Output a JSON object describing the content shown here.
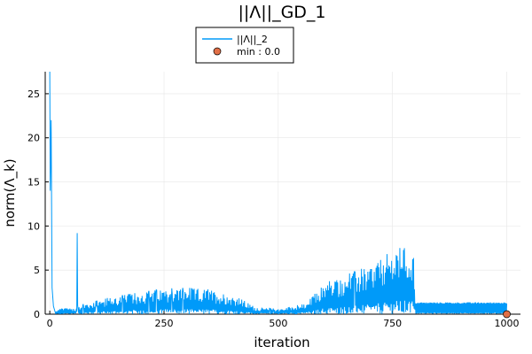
{
  "chart_data": {
    "type": "line",
    "title": "||Λ||_GD_1",
    "xlabel": "iteration",
    "ylabel": "norm(Λ_k)",
    "xlim": [
      -10,
      1030
    ],
    "ylim": [
      0,
      27.5
    ],
    "xticks": [
      0,
      250,
      500,
      750,
      1000
    ],
    "yticks": [
      0,
      5,
      10,
      15,
      20,
      25
    ],
    "grid": true,
    "legend": "top",
    "series": [
      {
        "name": "||Λ||_2",
        "color": "#009af9",
        "description_points": [
          [
            0,
            27.5
          ],
          [
            1,
            14.0
          ],
          [
            3,
            22.0
          ],
          [
            5,
            3.0
          ],
          [
            8,
            0.9
          ],
          [
            12,
            0.2
          ],
          [
            20,
            0.6
          ],
          [
            40,
            0.8
          ],
          [
            58,
            0.7
          ],
          [
            60,
            9.2
          ],
          [
            62,
            1.0
          ],
          [
            100,
            1.5
          ],
          [
            140,
            2.0
          ],
          [
            200,
            2.5
          ],
          [
            250,
            2.9
          ],
          [
            300,
            3.0
          ],
          [
            350,
            2.8
          ],
          [
            410,
            2.0
          ],
          [
            450,
            0.8
          ],
          [
            500,
            0.6
          ],
          [
            560,
            1.2
          ],
          [
            600,
            3.5
          ],
          [
            650,
            4.5
          ],
          [
            700,
            5.5
          ],
          [
            760,
            7.6
          ],
          [
            795,
            8.1
          ],
          [
            800,
            1.3
          ],
          [
            850,
            1.2
          ],
          [
            900,
            1.2
          ],
          [
            950,
            1.2
          ],
          [
            1000,
            1.2
          ]
        ]
      }
    ],
    "markers": [
      {
        "name": "min : 0.0",
        "x": 1000,
        "y": 0.0,
        "color": "#e26f46"
      }
    ]
  }
}
